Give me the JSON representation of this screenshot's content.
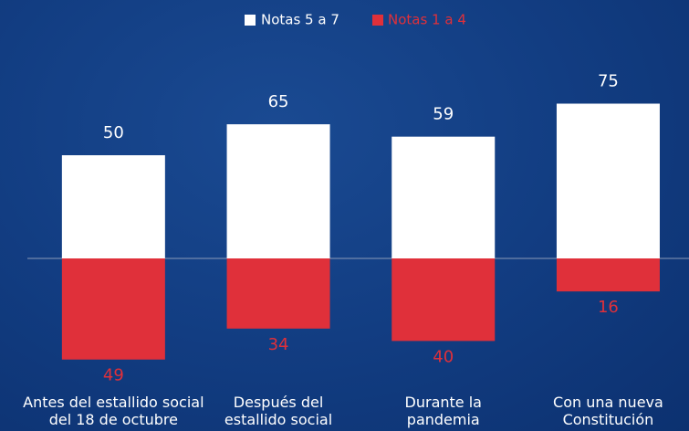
{
  "chart_data": {
    "type": "diverging_bar",
    "categories": [
      "Antes del estallido social\ndel 18 de octubre",
      "Después del\nestallido social",
      "Durante la\npandemia",
      "Con una nueva\nConstitución"
    ],
    "series": [
      {
        "name": "Notas 5 a 7",
        "color": "#ffffff",
        "values": [
          50,
          65,
          59,
          75
        ]
      },
      {
        "name": "Notas 1 a 4",
        "color": "#e0303a",
        "values": [
          49,
          34,
          40,
          16
        ]
      }
    ]
  }
}
